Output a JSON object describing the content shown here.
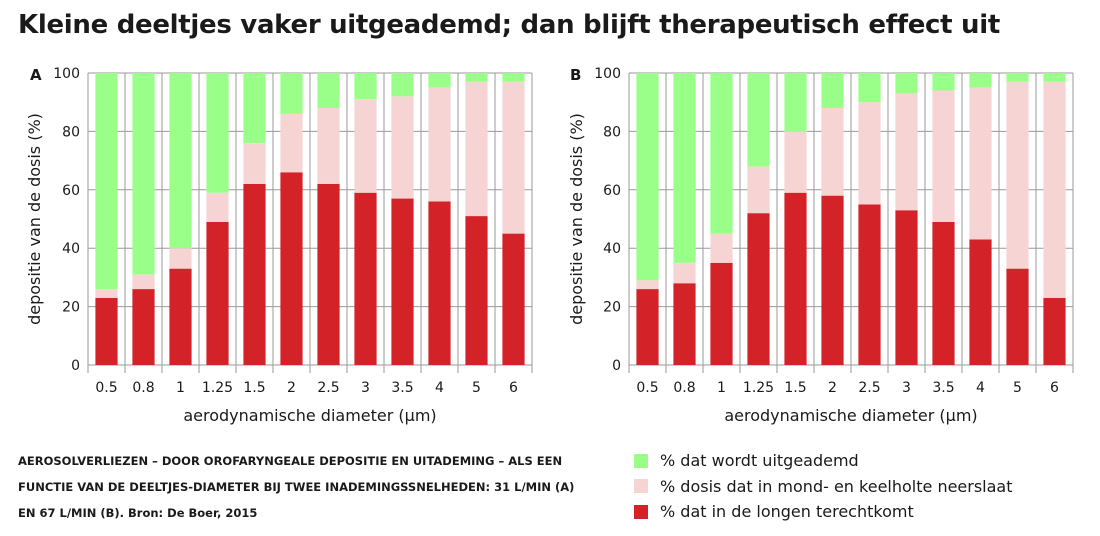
{
  "title": "Kleine deeltjes vaker uitgeademd; dan blijft therapeutisch effect uit",
  "colors": {
    "exhaled": "#99ff88",
    "throat": "#f7d4d4",
    "lungs": "#d42328",
    "grid": "#9a9a9a"
  },
  "chart_data": [
    {
      "type": "bar",
      "stacked": true,
      "panel_label": "A",
      "categories": [
        "0.5",
        "0.8",
        "1",
        "1.25",
        "1.5",
        "2",
        "2.5",
        "3",
        "3.5",
        "4",
        "5",
        "6"
      ],
      "series": [
        {
          "name": "% dat in de longen terechtkomt",
          "values": [
            23,
            26,
            33,
            49,
            62,
            66,
            62,
            59,
            57,
            56,
            51,
            45
          ]
        },
        {
          "name": "% dosis dat in mond- en keelholte neerslaat",
          "values": [
            3,
            5,
            7,
            10,
            14,
            20,
            26,
            32,
            35,
            39,
            46,
            52
          ]
        },
        {
          "name": "% dat wordt uitgeademd",
          "values": [
            74,
            69,
            60,
            41,
            24,
            14,
            12,
            9,
            8,
            5,
            3,
            3
          ]
        }
      ],
      "xlabel": "aerodynamische diameter (µm)",
      "ylabel": "depositie van de dosis (%)",
      "ylim": [
        0,
        100
      ],
      "yticks": [
        0,
        20,
        40,
        60,
        80,
        100
      ],
      "grid": true
    },
    {
      "type": "bar",
      "stacked": true,
      "panel_label": "B",
      "categories": [
        "0.5",
        "0.8",
        "1",
        "1.25",
        "1.5",
        "2",
        "2.5",
        "3",
        "3.5",
        "4",
        "5",
        "6"
      ],
      "series": [
        {
          "name": "% dat in de longen terechtkomt",
          "values": [
            26,
            28,
            35,
            52,
            59,
            58,
            55,
            53,
            49,
            43,
            33,
            23
          ]
        },
        {
          "name": "% dosis dat in mond- en keelholte neerslaat",
          "values": [
            3,
            7,
            10,
            16,
            21,
            30,
            35,
            40,
            45,
            52,
            64,
            74
          ]
        },
        {
          "name": "% dat wordt uitgeademd",
          "values": [
            71,
            65,
            55,
            32,
            20,
            12,
            10,
            7,
            6,
            5,
            3,
            3
          ]
        }
      ],
      "xlabel": "aerodynamische diameter (µm)",
      "ylabel": "depositie van de dosis (%)",
      "ylim": [
        0,
        100
      ],
      "yticks": [
        0,
        20,
        40,
        60,
        80,
        100
      ],
      "grid": true
    }
  ],
  "caption": {
    "line1": "Aerosolverliezen – door orofaryngeale depositie en uitademing – als een",
    "line2": "functie van de deeltjes-diameter bij twee inademingssnelheden: 31 L/min (A)",
    "line3_upper": "en 67 L/min (B).",
    "line3_source": " Bron: De Boer, 2015"
  },
  "legend": [
    {
      "label": "% dat wordt uitgeademd",
      "color": "#99ff88"
    },
    {
      "label": "% dosis dat in mond- en keelholte neerslaat",
      "color": "#f7d4d4"
    },
    {
      "label": "% dat in de longen terechtkomt",
      "color": "#d42328"
    }
  ]
}
